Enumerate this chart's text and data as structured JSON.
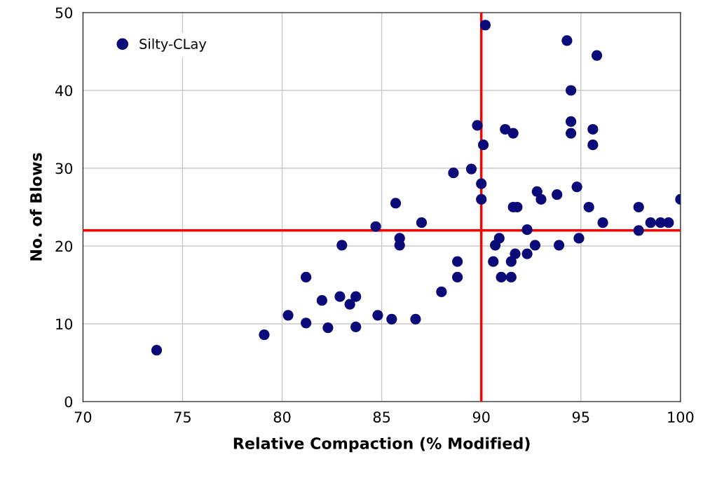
{
  "chart_data": {
    "type": "scatter",
    "xlabel": "Relative Compaction (% Modified)",
    "ylabel": "No. of Blows",
    "xlim": [
      70,
      100
    ],
    "xticks": [
      70,
      75,
      80,
      85,
      90,
      95,
      100
    ],
    "ylim": [
      0,
      50
    ],
    "yticks": [
      0,
      10,
      20,
      30,
      40,
      50
    ],
    "grid": true,
    "legend": "top left",
    "marker": "circle",
    "series": [
      {
        "name": "Silty-CLay",
        "color": "#0a0a78",
        "x": [
          73.7,
          79.1,
          80.3,
          81.2,
          81.2,
          82.0,
          82.3,
          82.9,
          83.0,
          83.4,
          83.7,
          83.7,
          84.7,
          84.8,
          85.5,
          85.7,
          85.9,
          85.9,
          86.7,
          87.0,
          88.0,
          88.6,
          88.8,
          88.8,
          89.5,
          89.8,
          90.0,
          90.0,
          90.1,
          90.2,
          90.6,
          90.7,
          90.9,
          91.0,
          91.2,
          91.5,
          91.5,
          91.6,
          91.6,
          91.8,
          91.7,
          92.3,
          92.3,
          92.7,
          92.8,
          93.0,
          93.8,
          93.9,
          94.3,
          94.5,
          94.5,
          94.5,
          94.8,
          94.9,
          95.4,
          95.6,
          95.6,
          95.8,
          96.1,
          97.9,
          97.9,
          98.5,
          99.0,
          99.4,
          100.0
        ],
        "values": [
          6.6,
          8.6,
          11.1,
          10.1,
          16.0,
          13.0,
          9.5,
          13.5,
          20.1,
          12.5,
          9.6,
          13.5,
          22.5,
          11.1,
          10.6,
          25.5,
          21.0,
          20.1,
          10.6,
          23.0,
          14.1,
          29.4,
          18.0,
          16.0,
          29.9,
          35.5,
          28.0,
          26.0,
          33.0,
          48.4,
          18.0,
          20.1,
          21.0,
          16.0,
          35.0,
          16.0,
          18.0,
          34.5,
          25.0,
          25.0,
          19.0,
          22.1,
          19.0,
          20.1,
          27.0,
          26.0,
          26.6,
          20.1,
          46.4,
          40.0,
          36.0,
          34.5,
          27.6,
          21.0,
          25.0,
          35.0,
          33.0,
          44.5,
          23.0,
          25.0,
          22.0,
          23.0,
          23.0,
          23.0,
          26.0
        ]
      }
    ],
    "ref_lines": [
      {
        "axis": "x",
        "value": 90,
        "color": "#ff0000"
      },
      {
        "axis": "y",
        "value": 22,
        "color": "#ff0000"
      }
    ]
  }
}
